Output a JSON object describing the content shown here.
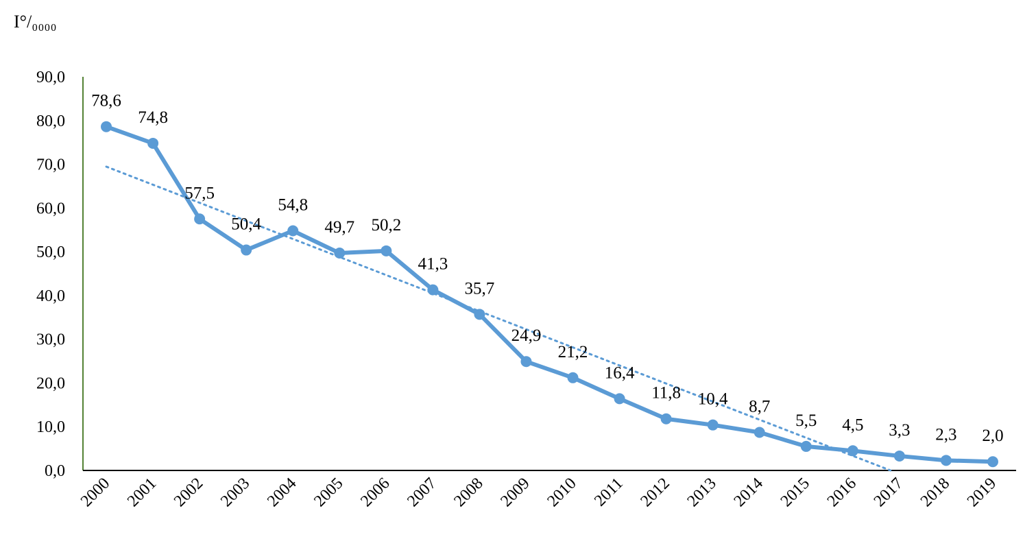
{
  "chart_data": {
    "type": "line",
    "title": "",
    "xlabel": "",
    "ylabel": "I°/₀₀₀₀",
    "x": [
      "2000",
      "2001",
      "2002",
      "2003",
      "2004",
      "2005",
      "2006",
      "2007",
      "2008",
      "2009",
      "2010",
      "2011",
      "2012",
      "2013",
      "2014",
      "2015",
      "2016",
      "2017",
      "2018",
      "2019"
    ],
    "series": [
      {
        "values": [
          78.6,
          74.8,
          57.5,
          50.4,
          54.8,
          49.7,
          50.2,
          41.3,
          35.7,
          24.9,
          21.2,
          16.4,
          11.8,
          10.4,
          8.7,
          5.5,
          4.5,
          3.3,
          2.3,
          2.0
        ],
        "data_labels": [
          "78,6",
          "74,8",
          "57,5",
          "50,4",
          "54,8",
          "49,7",
          "50,2",
          "41,3",
          "35,7",
          "24,9",
          "21,2",
          "16,4",
          "11,8",
          "10,4",
          "8,7",
          "5,5",
          "4,5",
          "3,3",
          "2,3",
          "2,0"
        ],
        "color": "#5B9BD5",
        "marker": "circle"
      }
    ],
    "trendline": {
      "type": "linear",
      "style": "dotted",
      "color": "#5B9BD5"
    },
    "ylim": [
      0,
      90
    ],
    "y_ticks": [
      0,
      10,
      20,
      30,
      40,
      50,
      60,
      70,
      80,
      90
    ],
    "y_tick_labels": [
      "0,0",
      "10,0",
      "20,0",
      "30,0",
      "40,0",
      "50,0",
      "60,0",
      "70,0",
      "80,0",
      "90,0"
    ],
    "y_axis_line_color": "#548235",
    "x_axis_line_color": "#000000",
    "grid": false,
    "legend": "none"
  }
}
